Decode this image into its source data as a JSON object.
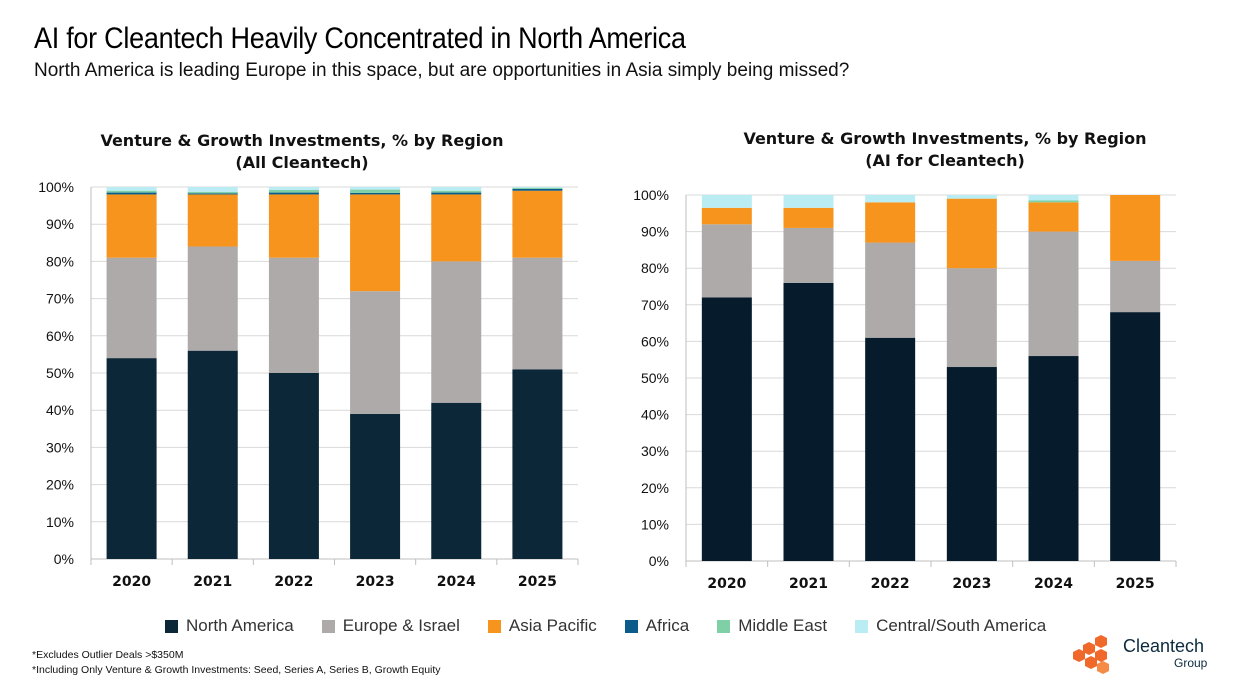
{
  "header": {
    "title": "AI for Cleantech Heavily Concentrated in North America",
    "subtitle": "North America is leading Europe in this space, but are opportunities in Asia simply being missed?"
  },
  "colors": {
    "North America": "#0c2838",
    "North America AI": "#061c2c",
    "Europe & Israel": "#aeaaaa",
    "Asia Pacific": "#f7941d",
    "Africa": "#0b5c8a",
    "Middle East": "#7fd0a6",
    "Central/South America": "#b9ecf3"
  },
  "legend": [
    {
      "label": "North America",
      "color": "#0c2838"
    },
    {
      "label": "Europe & Israel",
      "color": "#aeaaaa"
    },
    {
      "label": "Asia Pacific",
      "color": "#f7941d"
    },
    {
      "label": "Africa",
      "color": "#0b5c8a"
    },
    {
      "label": "Middle East",
      "color": "#7fd0a6"
    },
    {
      "label": "Central/South America",
      "color": "#b9ecf3"
    }
  ],
  "footnotes": [
    "*Excludes Outlier Deals >$350M",
    "*Including Only Venture & Growth Investments: Seed, Series A, Series B, Growth Equity"
  ],
  "logo": {
    "name": "Cleantech",
    "sub": "Group",
    "icon": "hexagon-cluster-icon"
  },
  "chart_data": [
    {
      "type": "bar",
      "stacked": true,
      "title": [
        "Venture & Growth Investments, % by Region",
        "(All Cleantech)"
      ],
      "categories": [
        "2020",
        "2021",
        "2022",
        "2023",
        "2024",
        "2025"
      ],
      "yticks": [
        "0%",
        "10%",
        "20%",
        "30%",
        "40%",
        "50%",
        "60%",
        "70%",
        "80%",
        "90%",
        "100%"
      ],
      "ylim": [
        0,
        100
      ],
      "grid": true,
      "series": [
        {
          "name": "North America",
          "values": [
            54,
            56,
            50,
            39,
            42,
            51
          ]
        },
        {
          "name": "Europe & Israel",
          "values": [
            27,
            28,
            31,
            33,
            38,
            30
          ]
        },
        {
          "name": "Asia Pacific",
          "values": [
            17,
            14,
            17,
            26,
            18,
            18
          ]
        },
        {
          "name": "Africa",
          "values": [
            0.5,
            0.3,
            0.5,
            0.4,
            0.5,
            0.5
          ]
        },
        {
          "name": "Middle East",
          "values": [
            0.5,
            0.4,
            0.7,
            0.9,
            0.5,
            0.3
          ]
        },
        {
          "name": "Central/South America",
          "values": [
            1,
            1.3,
            0.8,
            0.7,
            1,
            0.2
          ]
        }
      ]
    },
    {
      "type": "bar",
      "stacked": true,
      "title": [
        "Venture & Growth Investments, % by Region",
        "(AI for Cleantech)"
      ],
      "categories": [
        "2020",
        "2021",
        "2022",
        "2023",
        "2024",
        "2025"
      ],
      "yticks": [
        "0%",
        "10%",
        "20%",
        "30%",
        "40%",
        "50%",
        "60%",
        "70%",
        "80%",
        "90%",
        "100%"
      ],
      "ylim": [
        0,
        100
      ],
      "grid": true,
      "series": [
        {
          "name": "North America",
          "values": [
            72,
            76,
            61,
            53,
            56,
            68
          ]
        },
        {
          "name": "Europe & Israel",
          "values": [
            20,
            15,
            26,
            27,
            34,
            14
          ]
        },
        {
          "name": "Asia Pacific",
          "values": [
            4.5,
            5.5,
            11,
            19,
            8,
            18
          ]
        },
        {
          "name": "Africa",
          "values": [
            0,
            0,
            0,
            0,
            0,
            0
          ]
        },
        {
          "name": "Middle East",
          "values": [
            0,
            0,
            0,
            0,
            0.5,
            0
          ]
        },
        {
          "name": "Central/South America",
          "values": [
            3.5,
            3.5,
            2,
            1,
            1.5,
            0
          ]
        }
      ]
    }
  ]
}
